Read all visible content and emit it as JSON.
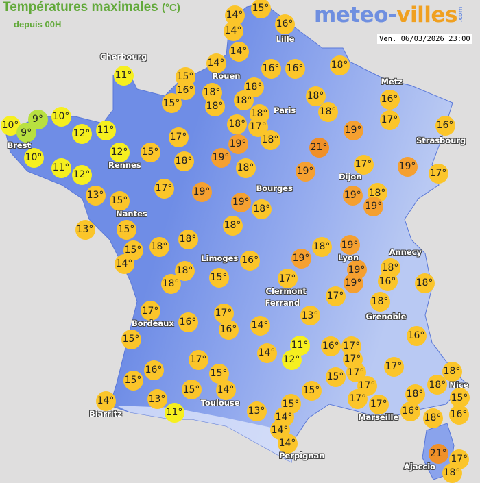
{
  "header": {
    "title": "Températures maximales",
    "unit": "(°C)",
    "subtitle": "depuis 00H"
  },
  "logo": {
    "part1": "meteo-",
    "part2": "villes",
    "suffix": ".com"
  },
  "timestamp": "Ven. 06/03/2026 23:00",
  "colors": {
    "background": "#dfdede",
    "land": "#6f8de6",
    "cold": "#b8e040",
    "cool": "#f6ef1f",
    "mild": "#fbc52a",
    "warm": "#f5a030",
    "title": "#62a93a"
  },
  "cities": [
    "Cherbourg",
    "Brest",
    "Rennes",
    "Nantes",
    "Lille",
    "Rouen",
    "Paris",
    "Metz",
    "Strasbourg",
    "Dijon",
    "Bourges",
    "Limoges",
    "Clermont",
    "Ferrand",
    "Lyon",
    "Annecy",
    "Grenoble",
    "Bordeaux",
    "Biarritz",
    "Toulouse",
    "Marseille",
    "Nice",
    "Ajaccio",
    "Perpignan"
  ],
  "temperatures": [
    "14°",
    "15°",
    "14°",
    "16°",
    "14°",
    "14°",
    "15°",
    "16°",
    "15°",
    "18°",
    "18°",
    "18°",
    "18°",
    "16°",
    "16°",
    "18°",
    "18°",
    "18°",
    "18°",
    "18°",
    "17°",
    "18°",
    "19°",
    "19°",
    "18°",
    "19°",
    "21°",
    "19°",
    "17°",
    "19°",
    "18°",
    "19°",
    "16°",
    "17°",
    "16°",
    "19°",
    "17°",
    "11°",
    "10°",
    "9°",
    "9°",
    "10°",
    "12°",
    "11°",
    "10°",
    "11°",
    "12°",
    "12°",
    "15°",
    "17°",
    "18°",
    "17°",
    "19°",
    "13°",
    "15°",
    "13°",
    "15°",
    "19°",
    "18°",
    "18°",
    "15°",
    "14°",
    "18°",
    "18°",
    "18°",
    "18°",
    "15°",
    "16°",
    "18°",
    "19°",
    "19°",
    "19°",
    "19°",
    "18°",
    "16°",
    "18°",
    "17°",
    "17°",
    "18°",
    "13°",
    "17°",
    "16°",
    "17°",
    "16°",
    "14°",
    "15°",
    "17°",
    "16°",
    "15°",
    "15°",
    "15°",
    "14°",
    "14°",
    "13°",
    "11°",
    "13°",
    "14°",
    "11°",
    "12°",
    "16°",
    "17°",
    "17°",
    "17°",
    "17°",
    "17°",
    "17°",
    "15°",
    "15°",
    "17°",
    "16°",
    "18°",
    "18°",
    "15°",
    "18°",
    "16°",
    "16°",
    "18°",
    "15°",
    "14°",
    "14°",
    "14°",
    "21°",
    "17°",
    "18°"
  ]
}
